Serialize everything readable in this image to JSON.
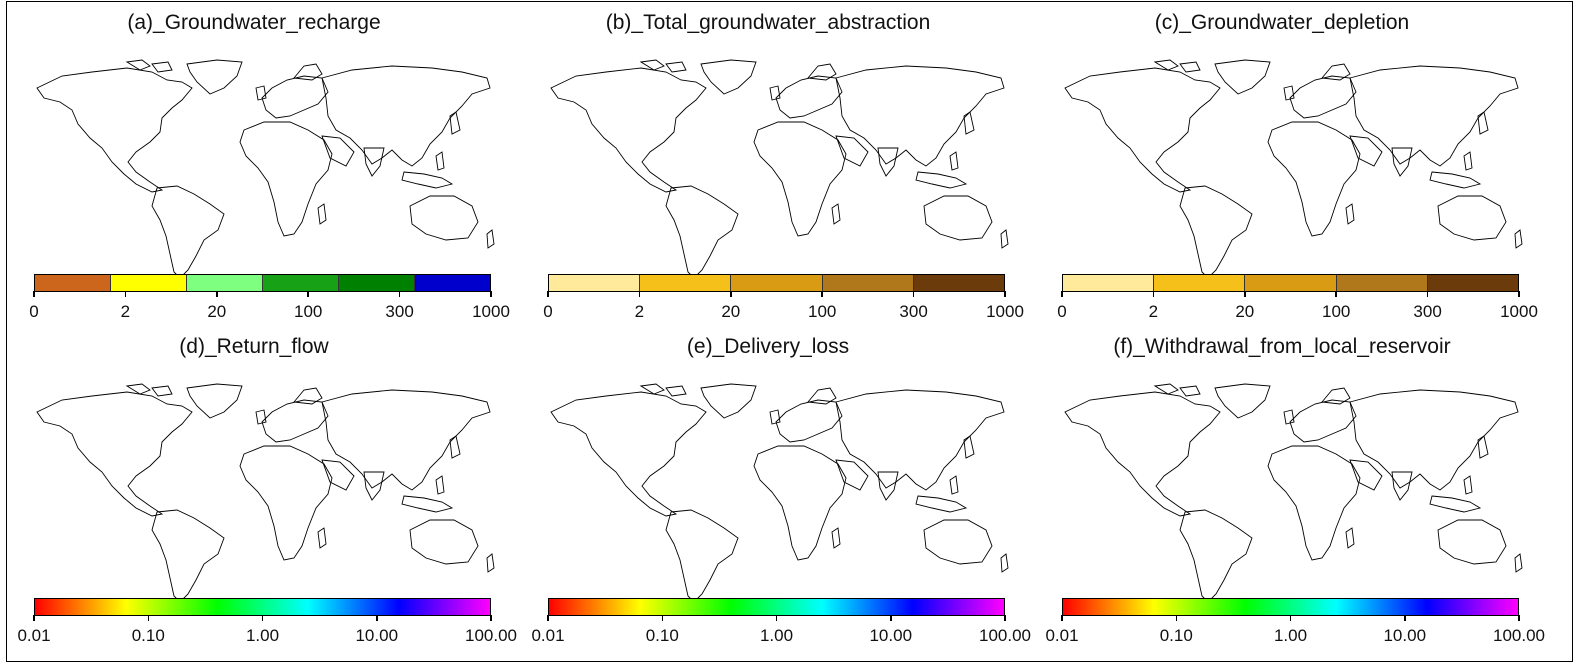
{
  "panels": [
    {
      "title": "(a)_Groundwater_recharge",
      "map_style": "recharge",
      "legend": {
        "type": "discrete",
        "colors": [
          "#cd661d",
          "#ffff00",
          "#7fff7f",
          "#16a116",
          "#008000",
          "#0000cd"
        ],
        "labels": [
          "0",
          "2",
          "20",
          "100",
          "300",
          "1000"
        ]
      }
    },
    {
      "title": "(b)_Total_groundwater_abstraction",
      "map_style": "abstraction",
      "legend": {
        "type": "discrete",
        "colors": [
          "#ffe99b",
          "#f6c01a",
          "#d99b14",
          "#b0781a",
          "#6b3b0c"
        ],
        "labels": [
          "0",
          "2",
          "20",
          "100",
          "300",
          "1000"
        ]
      }
    },
    {
      "title": "(c)_Groundwater_depletion",
      "map_style": "depletion",
      "legend": {
        "type": "discrete",
        "colors": [
          "#ffe99b",
          "#f6c01a",
          "#d99b14",
          "#b0781a",
          "#6b3b0c"
        ],
        "labels": [
          "0",
          "2",
          "20",
          "100",
          "300",
          "1000"
        ]
      }
    },
    {
      "title": "(d)_Return_flow",
      "map_style": "return",
      "legend": {
        "type": "continuous",
        "colors": [
          "#ff0000",
          "#ffff00",
          "#00ff00",
          "#00ffff",
          "#0000ff",
          "#ff00ff"
        ],
        "labels": [
          "0.01",
          "0.10",
          "1.00",
          "10.00",
          "100.00"
        ]
      }
    },
    {
      "title": "(e)_Delivery_loss",
      "map_style": "loss",
      "legend": {
        "type": "continuous",
        "colors": [
          "#ff0000",
          "#ffff00",
          "#00ff00",
          "#00ffff",
          "#0000ff",
          "#ff00ff"
        ],
        "labels": [
          "0.01",
          "0.10",
          "1.00",
          "10.00",
          "100.00"
        ]
      }
    },
    {
      "title": "(f)_Withdrawal_from_local_reservoir",
      "map_style": "withdrawal",
      "legend": {
        "type": "continuous",
        "colors": [
          "#ff0000",
          "#ffff00",
          "#00ff00",
          "#00ffff",
          "#0000ff",
          "#ff00ff"
        ],
        "labels": [
          "0.01",
          "0.10",
          "1.00",
          "10.00",
          "100.00"
        ]
      }
    }
  ]
}
